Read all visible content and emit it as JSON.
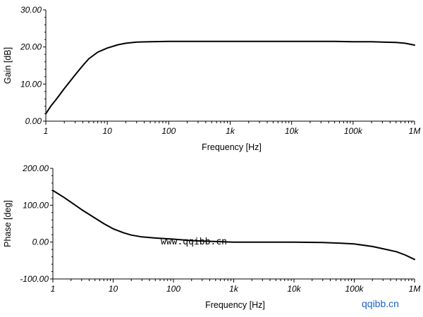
{
  "chart_data": [
    {
      "type": "line",
      "xscale": "log",
      "xlim": [
        1,
        1000000
      ],
      "ylim": [
        0,
        30
      ],
      "xlabel": "Frequency [Hz]",
      "ylabel": "Gain [dB]",
      "x_ticks": [
        "1",
        "10",
        "100",
        "1k",
        "10k",
        "100k",
        "1M"
      ],
      "y_ticks": [
        "0.00",
        "10.00",
        "20.00",
        "30.00"
      ],
      "series": [
        {
          "x": [
            1,
            1.2,
            1.5,
            2,
            3,
            4,
            5,
            7,
            10,
            15,
            20,
            30,
            50,
            100,
            1000,
            10000,
            50000,
            100000,
            200000,
            300000,
            500000,
            700000,
            1000000
          ],
          "y": [
            2.0,
            4.0,
            6.0,
            8.8,
            12.5,
            15.0,
            16.8,
            18.6,
            19.7,
            20.6,
            21.0,
            21.3,
            21.4,
            21.5,
            21.5,
            21.5,
            21.5,
            21.4,
            21.4,
            21.3,
            21.2,
            21.0,
            20.5
          ]
        }
      ]
    },
    {
      "type": "line",
      "xscale": "log",
      "xlim": [
        1,
        1000000
      ],
      "ylim": [
        -100,
        200
      ],
      "xlabel": "Frequency [Hz]",
      "ylabel": "Phase [deg]",
      "x_ticks": [
        "1",
        "10",
        "100",
        "1k",
        "10k",
        "100k",
        "1M"
      ],
      "y_ticks": [
        "-100.00",
        "0.00",
        "100.00",
        "200.00"
      ],
      "series": [
        {
          "x": [
            1,
            1.5,
            2,
            3,
            4,
            5,
            7,
            10,
            15,
            20,
            30,
            50,
            100,
            200,
            1000,
            10000,
            30000,
            60000,
            100000,
            200000,
            300000,
            500000,
            700000,
            1000000
          ],
          "y": [
            140,
            122,
            108,
            88,
            75,
            65,
            50,
            36,
            25,
            19,
            14,
            11,
            8,
            4,
            0,
            0,
            -1,
            -3,
            -5,
            -12,
            -18,
            -26,
            -35,
            -47
          ]
        }
      ]
    }
  ],
  "watermarks": {
    "center": "www.qqibb.cn",
    "corner": "qqibb.cn",
    "corner_color": "#1a63c9"
  }
}
